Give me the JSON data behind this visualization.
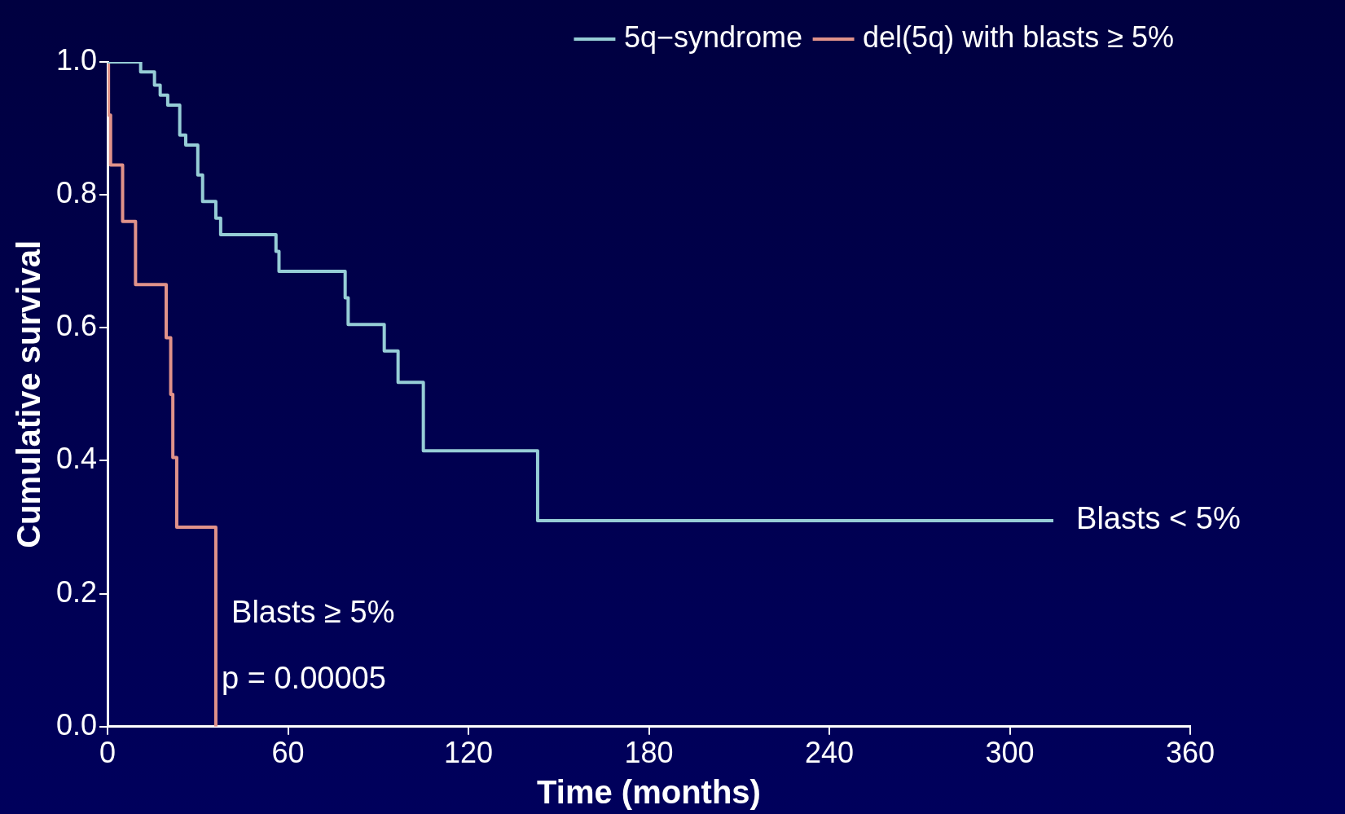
{
  "chart_data": {
    "type": "step",
    "xlabel": "Time (months)",
    "ylabel": "Cumulative survival",
    "xlim": [
      0,
      360
    ],
    "xticks": [
      0,
      60,
      120,
      180,
      240,
      300,
      360
    ],
    "ylim": [
      0,
      1
    ],
    "yticks": [
      {
        "value": 0,
        "label": "0.0"
      },
      {
        "value": 0.2,
        "label": "0.2"
      },
      {
        "value": 0.4,
        "label": "0.4"
      },
      {
        "value": 0.6,
        "label": "0.6"
      },
      {
        "value": 0.8,
        "label": "0.8"
      },
      {
        "value": 1,
        "label": "1.0"
      }
    ],
    "grid": false,
    "legend": "top right",
    "marker": "none",
    "line_style": "solid",
    "series": [
      {
        "name": "5q−syndrome",
        "color": "#96cdd6",
        "x": [
          0,
          11,
          15.6,
          17.5,
          20,
          24,
          26,
          30,
          31.6,
          36,
          37.6,
          56,
          57,
          79,
          80,
          92,
          96.6,
          105,
          143,
          314.5
        ],
        "values": [
          1,
          0.985,
          0.965,
          0.95,
          0.935,
          0.89,
          0.875,
          0.83,
          0.79,
          0.765,
          0.74,
          0.715,
          0.685,
          0.645,
          0.605,
          0.565,
          0.518,
          0.415,
          0.31,
          0.31
        ]
      },
      {
        "name": "del(5q) with blasts ≥ 5%",
        "color": "#e0928a",
        "x": [
          0,
          0.3,
          1,
          5,
          9.3,
          19.5,
          21,
          21.7,
          23,
          36
        ],
        "values": [
          1,
          0.92,
          0.845,
          0.76,
          0.665,
          0.585,
          0.5,
          0.405,
          0.3,
          0
        ]
      }
    ],
    "annotations": [
      {
        "text": "Blasts < 5%",
        "x": 314.5,
        "y": 0.31
      },
      "Blasts ≥ 5%",
      "p = 0.00005"
    ]
  }
}
